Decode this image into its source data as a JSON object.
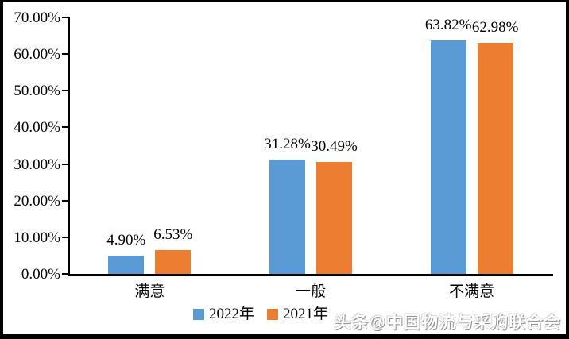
{
  "chart_data": {
    "type": "bar",
    "categories": [
      "满意",
      "一般",
      "不满意"
    ],
    "series": [
      {
        "name": "2022年",
        "color": "#5B9BD5",
        "values": [
          4.9,
          31.28,
          63.82
        ],
        "labels": [
          "4.90%",
          "31.28%",
          "63.82%"
        ]
      },
      {
        "name": "2021年",
        "color": "#ED7D31",
        "values": [
          6.53,
          30.49,
          62.98
        ],
        "labels": [
          "6.53%",
          "30.49%",
          "62.98%"
        ]
      }
    ],
    "ylim": [
      0,
      70
    ],
    "ytick_step": 10,
    "yticks": [
      "0.00%",
      "10.00%",
      "20.00%",
      "30.00%",
      "40.00%",
      "50.00%",
      "60.00%",
      "70.00%"
    ],
    "grid": false,
    "legend_position": "bottom"
  },
  "watermark": "头条@中国物流与采购联合会"
}
